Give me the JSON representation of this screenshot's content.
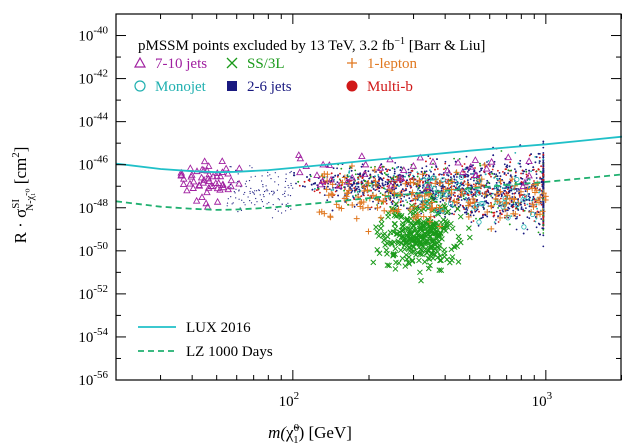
{
  "chart_data": {
    "type": "scatter",
    "title": "pMSSM points excluded by 13 TeV, 3.2 fb",
    "title_sup": "−1",
    "title_suffix": " [Barr & Liu]",
    "xlabel": {
      "m": "m(",
      "chi": "χ̃",
      "sup": "0",
      "sub": "1",
      "end": ") [GeV]"
    },
    "ylabel": {
      "pre": "R · σ",
      "sup": "SI",
      "sub": "N-χ̃₁⁰",
      "post": " [cm",
      "sup2": "2",
      "close": "]"
    },
    "xscale": "log",
    "yscale": "log",
    "xlim": [
      20,
      2000
    ],
    "ylim": [
      1e-56,
      1e-39
    ],
    "x_ticks": [
      {
        "value": 100,
        "base": "10",
        "exp": "2"
      },
      {
        "value": 1000,
        "base": "10",
        "exp": "3"
      }
    ],
    "y_ticks": [
      {
        "value": -40,
        "base": "10",
        "exp": "-40"
      },
      {
        "value": -42,
        "base": "10",
        "exp": "-42"
      },
      {
        "value": -44,
        "base": "10",
        "exp": "-44"
      },
      {
        "value": -46,
        "base": "10",
        "exp": "-46"
      },
      {
        "value": -48,
        "base": "10",
        "exp": "-48"
      },
      {
        "value": -50,
        "base": "10",
        "exp": "-50"
      },
      {
        "value": -52,
        "base": "10",
        "exp": "-52"
      },
      {
        "value": -54,
        "base": "10",
        "exp": "-54"
      },
      {
        "value": -56,
        "base": "10",
        "exp": "-56"
      }
    ],
    "legend_position": "top",
    "series": [
      {
        "name": "7-10 jets",
        "marker": "triangle-open",
        "color": "#a020a0"
      },
      {
        "name": "SS/3L",
        "marker": "x",
        "color": "#1a9a1a"
      },
      {
        "name": "1-lepton",
        "marker": "plus",
        "color": "#e07820"
      },
      {
        "name": "Monojet",
        "marker": "circle-open",
        "color": "#20b0b0"
      },
      {
        "name": "2-6 jets",
        "marker": "square",
        "color": "#1a1a80"
      },
      {
        "name": "Multi-b",
        "marker": "circle",
        "color": "#d01818"
      }
    ],
    "limit_curves": [
      {
        "name": "LUX 2016",
        "style": "solid",
        "color": "#20c0c8",
        "points": [
          [
            20,
            -45.95
          ],
          [
            30,
            -46.2
          ],
          [
            40,
            -46.3
          ],
          [
            50,
            -46.35
          ],
          [
            60,
            -46.33
          ],
          [
            80,
            -46.25
          ],
          [
            100,
            -46.15
          ],
          [
            150,
            -45.95
          ],
          [
            200,
            -45.8
          ],
          [
            300,
            -45.6
          ],
          [
            500,
            -45.35
          ],
          [
            700,
            -45.2
          ],
          [
            1000,
            -45.05
          ],
          [
            1500,
            -44.85
          ],
          [
            2000,
            -44.7
          ]
        ]
      },
      {
        "name": "LZ 1000 Days",
        "style": "dashed",
        "color": "#20b070",
        "points": [
          [
            20,
            -47.7
          ],
          [
            30,
            -47.95
          ],
          [
            40,
            -48.05
          ],
          [
            50,
            -48.1
          ],
          [
            60,
            -48.08
          ],
          [
            80,
            -48.0
          ],
          [
            100,
            -47.9
          ],
          [
            150,
            -47.7
          ],
          [
            200,
            -47.55
          ],
          [
            300,
            -47.35
          ],
          [
            500,
            -47.1
          ],
          [
            700,
            -46.95
          ],
          [
            1000,
            -46.8
          ],
          [
            1500,
            -46.6
          ],
          [
            2000,
            -46.45
          ]
        ]
      }
    ]
  }
}
